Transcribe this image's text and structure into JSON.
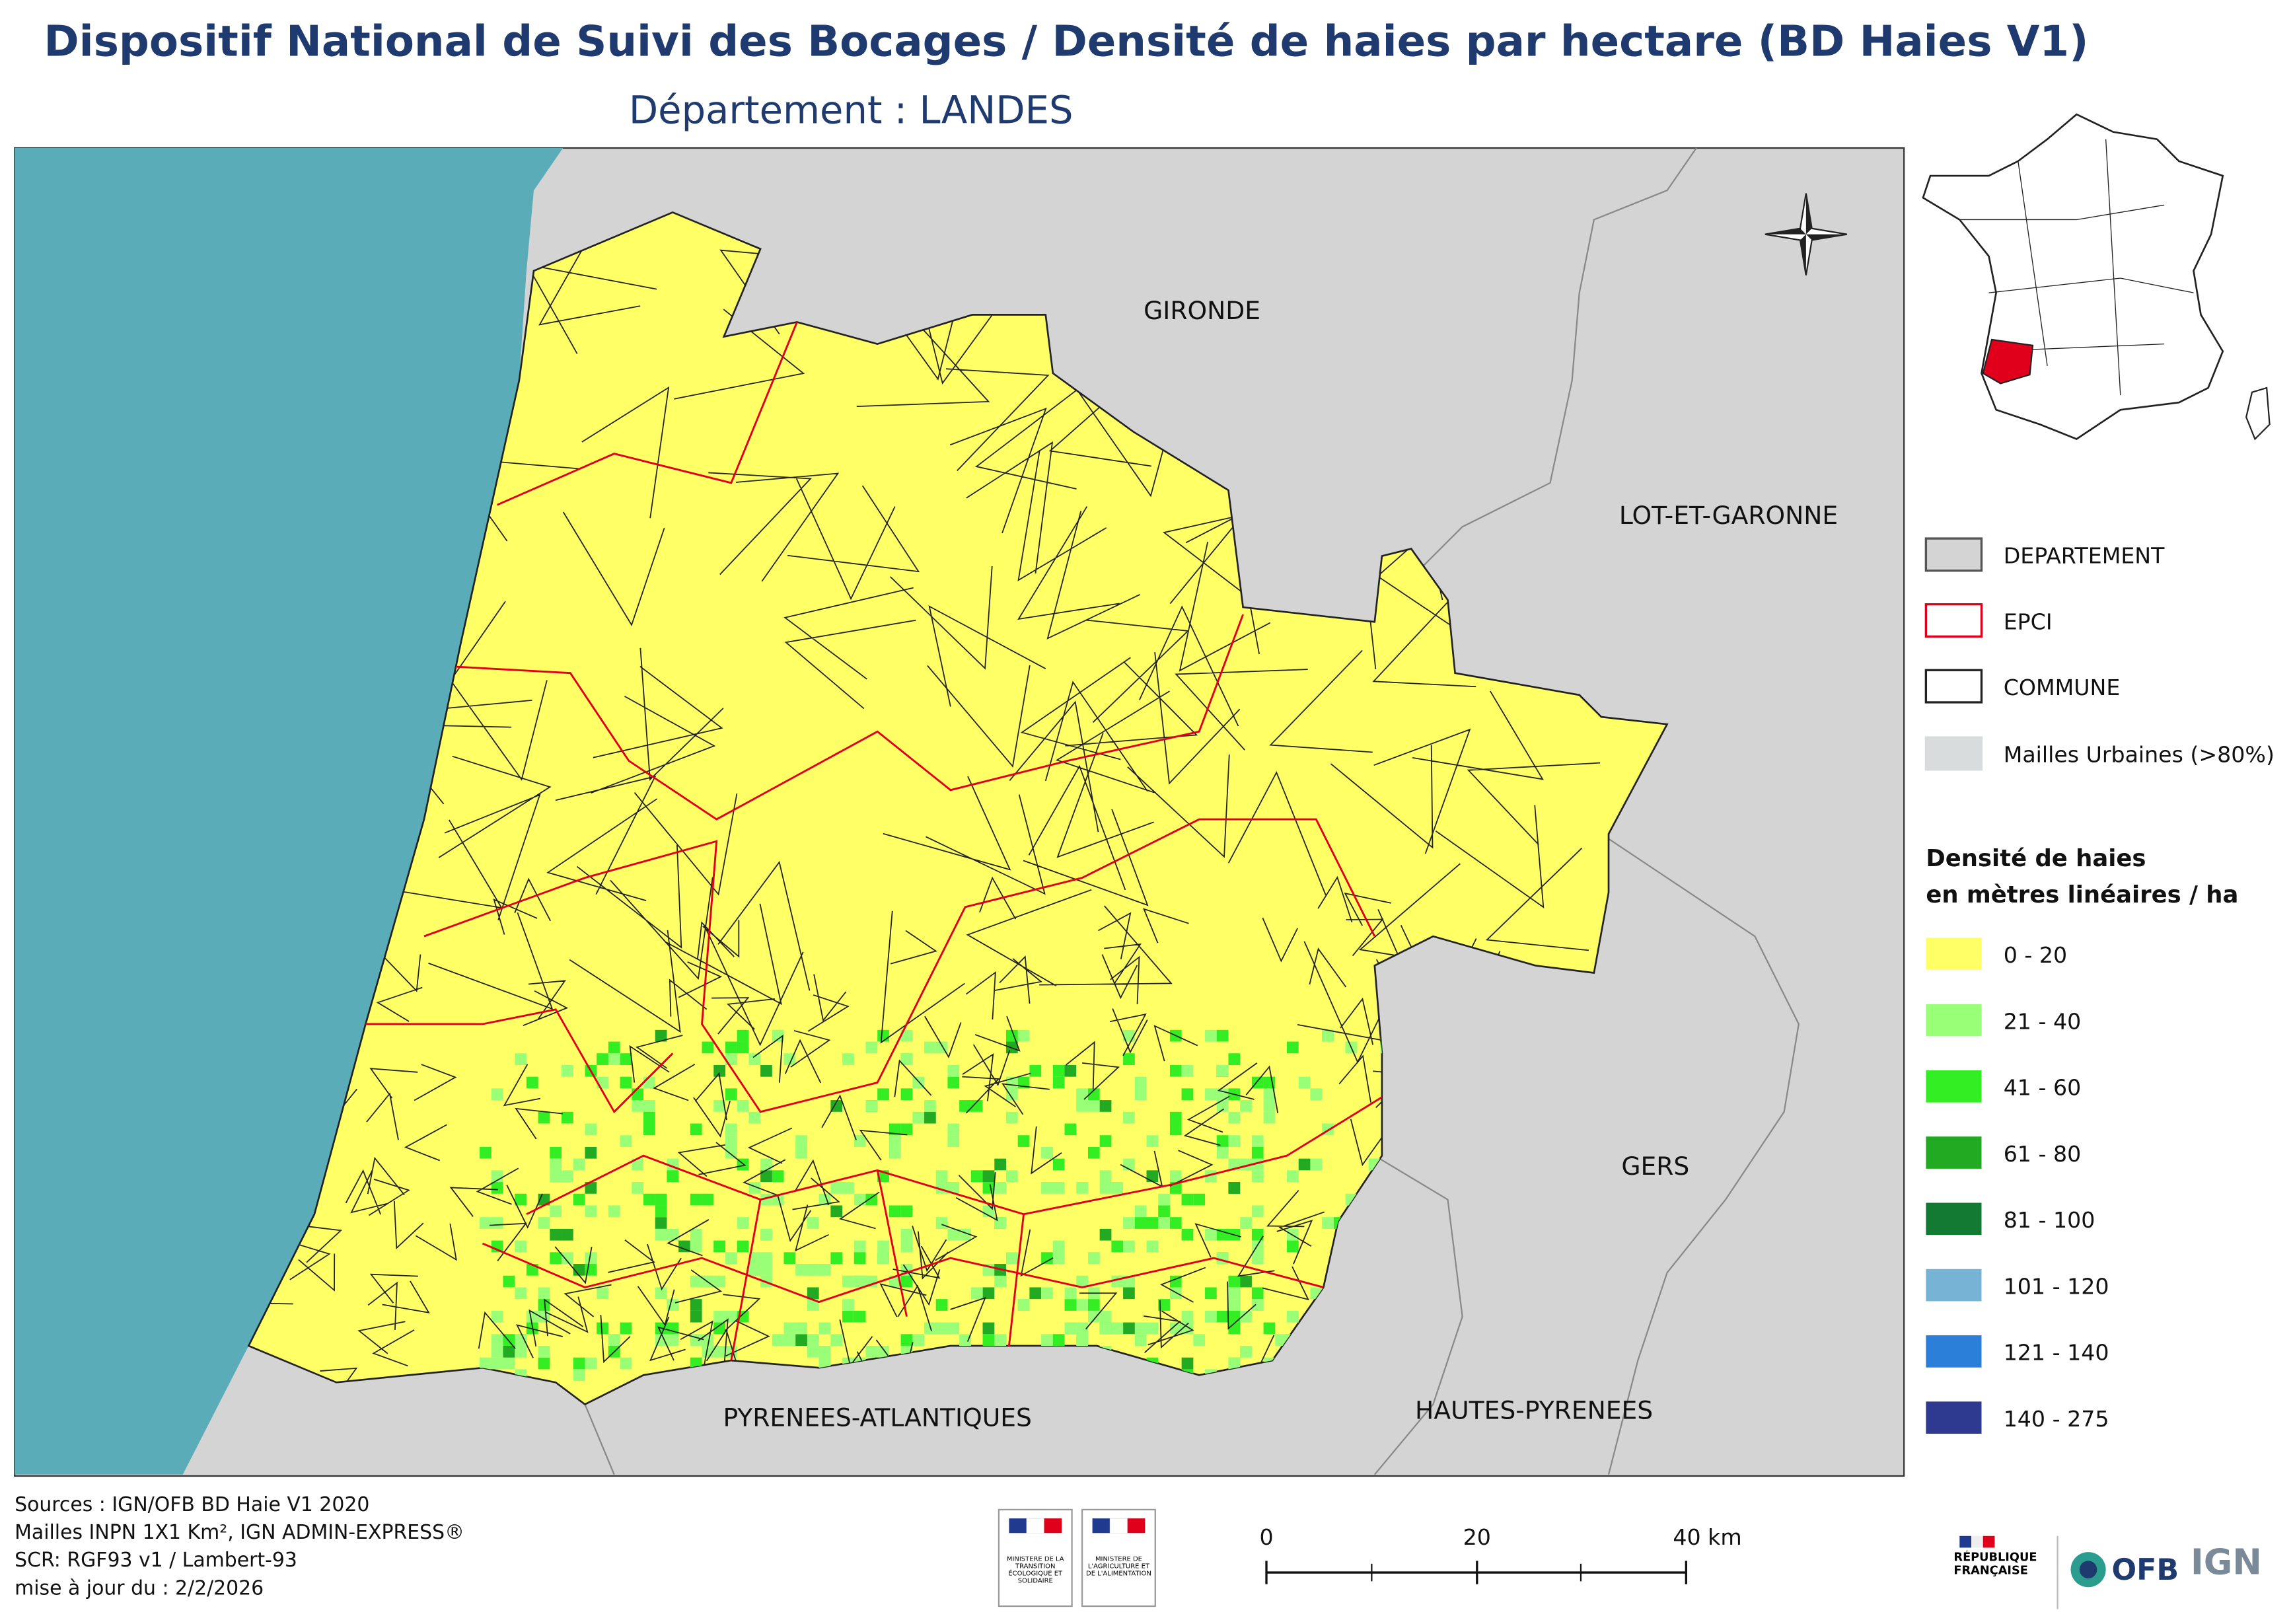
{
  "header": {
    "title": "Dispositif National de Suivi des Bocages / Densité de haies par hectare (BD Haies V1)",
    "subtitle": "Département :  LANDES"
  },
  "map": {
    "labels": [
      "GIRONDE",
      "LOT-ET-GARONNE",
      "GERS",
      "HAUTES-PYRENEES",
      "PYRENEES-ATLANTIQUES"
    ]
  },
  "legend": {
    "layers": [
      {
        "label": "DEPARTEMENT",
        "fill": "#d4d4d4",
        "stroke": "#555555"
      },
      {
        "label": "EPCI",
        "fill": "#ffffff",
        "stroke": "#e0001b"
      },
      {
        "label": "COMMUNE",
        "fill": "#ffffff",
        "stroke": "#222222"
      },
      {
        "label": "Mailles Urbaines (>80%)",
        "fill": "#d9dcdd",
        "stroke": "#d9dcdd"
      }
    ],
    "density_title": [
      "Densité de haies",
      "en mètres linéaires / ha"
    ],
    "classes": [
      {
        "label": "0 - 20",
        "color": "#ffff66"
      },
      {
        "label": "21 - 40",
        "color": "#99ff77"
      },
      {
        "label": "41 - 60",
        "color": "#33ee22"
      },
      {
        "label": "61 - 80",
        "color": "#22aa22"
      },
      {
        "label": "81 - 100",
        "color": "#137a33"
      },
      {
        "label": "101 - 120",
        "color": "#77b3d4"
      },
      {
        "label": "121 - 140",
        "color": "#2b7fd9"
      },
      {
        "label": "140 - 275",
        "color": "#2d3a8f"
      }
    ]
  },
  "footer": {
    "sources": [
      "Sources : IGN/OFB BD Haie V1 2020",
      "Mailles INPN 1X1 Km²,  IGN ADMIN-EXPRESS®",
      "SCR: RGF93 v1 / Lambert-93",
      "mise à jour du  : 2/2/2026"
    ],
    "scale_bar": [
      "0",
      "20",
      "40 km"
    ],
    "logos": [
      "MINISTÈRE DE LA TRANSITION ÉCOLOGIQUE ET SOLIDAIRE",
      "MINISTÈRE DE L'AGRICULTURE ET DE L'ALIMENTATION",
      "RÉPUBLIQUE FRANÇAISE",
      "OFB",
      "IGN"
    ]
  }
}
